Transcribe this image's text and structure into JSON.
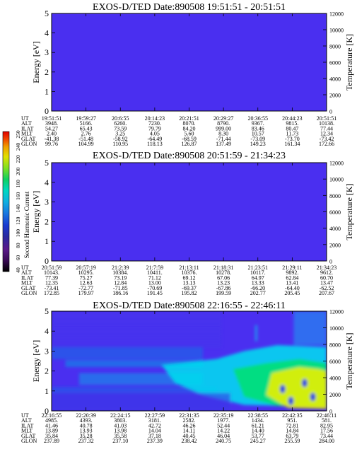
{
  "chart_data": [
    {
      "type": "heatmap",
      "title": "EXOS-D/TED    Date:890508   19:51:51 - 20:51:51",
      "ylabel": "Energy [eV]",
      "y2label": "Temperature [K]",
      "ylim": [
        0,
        5
      ],
      "y2lim": [
        0,
        12000
      ],
      "yticks": [
        "0",
        "1",
        "2",
        "3",
        "4",
        "5"
      ],
      "y2ticks": [
        "0",
        "2000",
        "4000",
        "6000",
        "8000",
        "10000",
        "12000"
      ],
      "fill": "uniform low (dark blue)",
      "rows": [
        {
          "name": "UT",
          "values": [
            "19:51:51",
            "19:59:27",
            "20:6:55",
            "20:14:23",
            "20:21:51",
            "20:29:27",
            "20:36:55",
            "20:44:23",
            "20:51:51"
          ]
        },
        {
          "name": "ALT",
          "values": [
            "3948.",
            "5166.",
            "6260.",
            "7230.",
            "8070.",
            "8790.",
            "9367.",
            "9815.",
            "10138."
          ]
        },
        {
          "name": "ILAT",
          "values": [
            "54.27",
            "65.43",
            "73.59",
            "79.79",
            "84.20",
            "999.00",
            "83.46",
            "80.47",
            "77.44"
          ]
        },
        {
          "name": "MLT",
          "values": [
            "2.40",
            "2.76",
            "3.25",
            "4.05",
            "5.60",
            "8.30",
            "10.57",
            "11.73",
            "12.34"
          ]
        },
        {
          "name": "GLAT",
          "values": [
            "-41.38",
            "-51.48",
            "-58.92",
            "-64.49",
            "-68.59",
            "-71.44",
            "-73.09",
            "-73.70",
            "-73.42"
          ]
        },
        {
          "name": "GLON",
          "values": [
            "99.76",
            "104.99",
            "110.95",
            "118.13",
            "126.87",
            "137.49",
            "149.23",
            "161.34",
            "172.66"
          ]
        }
      ]
    },
    {
      "type": "heatmap",
      "title": "EXOS-D/TED    Date:890508   20:51:59 - 21:34:23",
      "ylabel": "Energy [eV]",
      "y2label": "Temperature [K]",
      "ylim": [
        0,
        5
      ],
      "y2lim": [
        0,
        12000
      ],
      "yticks": [
        "0",
        "1",
        "2",
        "3",
        "4",
        "5"
      ],
      "y2ticks": [
        "0",
        "2000",
        "4000",
        "6000",
        "8000",
        "10000",
        "12000"
      ],
      "fill": "uniform low (dark blue)",
      "rows": [
        {
          "name": "UT",
          "values": [
            "20:51:59",
            "20:57:19",
            "21:2:39",
            "21:7:59",
            "21:13:11",
            "21:18:31",
            "21:23:51",
            "21:29:11",
            "21:34:23"
          ]
        },
        {
          "name": "ALT",
          "values": [
            "10143.",
            "10295.",
            "10384.",
            "10411.",
            "10376.",
            "10278.",
            "10117.",
            "9892.",
            "9612."
          ]
        },
        {
          "name": "ILAT",
          "values": [
            "77.39",
            "75.27",
            "73.19",
            "71.12",
            "69.12",
            "67.06",
            "64.97",
            "62.84",
            "60.70"
          ]
        },
        {
          "name": "MLT",
          "values": [
            "12.35",
            "12.63",
            "12.84",
            "13.00",
            "13.13",
            "13.23",
            "13.33",
            "13.41",
            "13.47"
          ]
        },
        {
          "name": "GLAT",
          "values": [
            "-73.41",
            "-72.77",
            "-71.85",
            "-70.69",
            "-69.37",
            "-67.86",
            "-66.20",
            "-64.40",
            "-62.52"
          ]
        },
        {
          "name": "GLON",
          "values": [
            "172.85",
            "179.97",
            "186.16",
            "191.45",
            "195.82",
            "199.59",
            "202.77",
            "205.45",
            "207.67"
          ]
        }
      ]
    },
    {
      "type": "heatmap",
      "title": "EXOS-D/TED    Date:890508   22:16:55 - 22:46:11",
      "ylabel": "Energy [eV]",
      "y2label": "Temperature [K]",
      "ylim": [
        0,
        5
      ],
      "y2lim": [
        0,
        12000
      ],
      "yticks": [
        "0",
        "1",
        "2",
        "3",
        "4",
        "5"
      ],
      "y2ticks": [
        "0",
        "2000",
        "4000",
        "6000",
        "8000",
        "10000",
        "12000"
      ],
      "fill": "spectrogram: mostly blue, rising to cyan/green/yellow toward end of interval at 1-3 eV",
      "rows": [
        {
          "name": "UT",
          "values": [
            "22:16:55",
            "22:20:39",
            "22:24:15",
            "22:27:59",
            "22:31:35",
            "22:35:19",
            "22:38:55",
            "22:42:35",
            "22:46:11"
          ]
        },
        {
          "name": "ALT",
          "values": [
            "4985.",
            "4393.",
            "3803.",
            "3181.",
            "2582.",
            "1977.",
            "1434.",
            "951.",
            "581."
          ]
        },
        {
          "name": "ILAT",
          "values": [
            "41.46",
            "40.78",
            "41.03",
            "42.72",
            "46.26",
            "52.44",
            "61.21",
            "72.81",
            "82.95"
          ]
        },
        {
          "name": "MLT",
          "values": [
            "13.89",
            "13.93",
            "13.98",
            "14.04",
            "14.11",
            "14.22",
            "14.40",
            "14.84",
            "17.56"
          ]
        },
        {
          "name": "GLAT",
          "values": [
            "35.84",
            "35.28",
            "35.58",
            "37.18",
            "40.45",
            "46.04",
            "53.77",
            "63.79",
            "73.44"
          ]
        },
        {
          "name": "GLON",
          "values": [
            "237.89",
            "237.32",
            "237.10",
            "237.39",
            "238.42",
            "240.75",
            "245.27",
            "255.59",
            "284.00"
          ]
        }
      ]
    }
  ],
  "colorbar": {
    "label": "Second Harmonic Current",
    "ticks": [
      "40",
      "60",
      "80",
      "100",
      "120",
      "140",
      "160",
      "180",
      "200",
      "220",
      "240",
      "250"
    ],
    "colors": [
      "#000000",
      "#3a0a55",
      "#5a1a8a",
      "#2a2aa0",
      "#1a3ad0",
      "#1a7ae0",
      "#10b0e0",
      "#00d8c0",
      "#10d060",
      "#80e020",
      "#e0e000",
      "#f0a000",
      "#f04000",
      "#e00000"
    ]
  },
  "colors": {
    "low": "#4a2ff0",
    "blue": "#2060e8",
    "cyan": "#00e0f0",
    "green": "#00e070",
    "yellow": "#e8f000"
  }
}
